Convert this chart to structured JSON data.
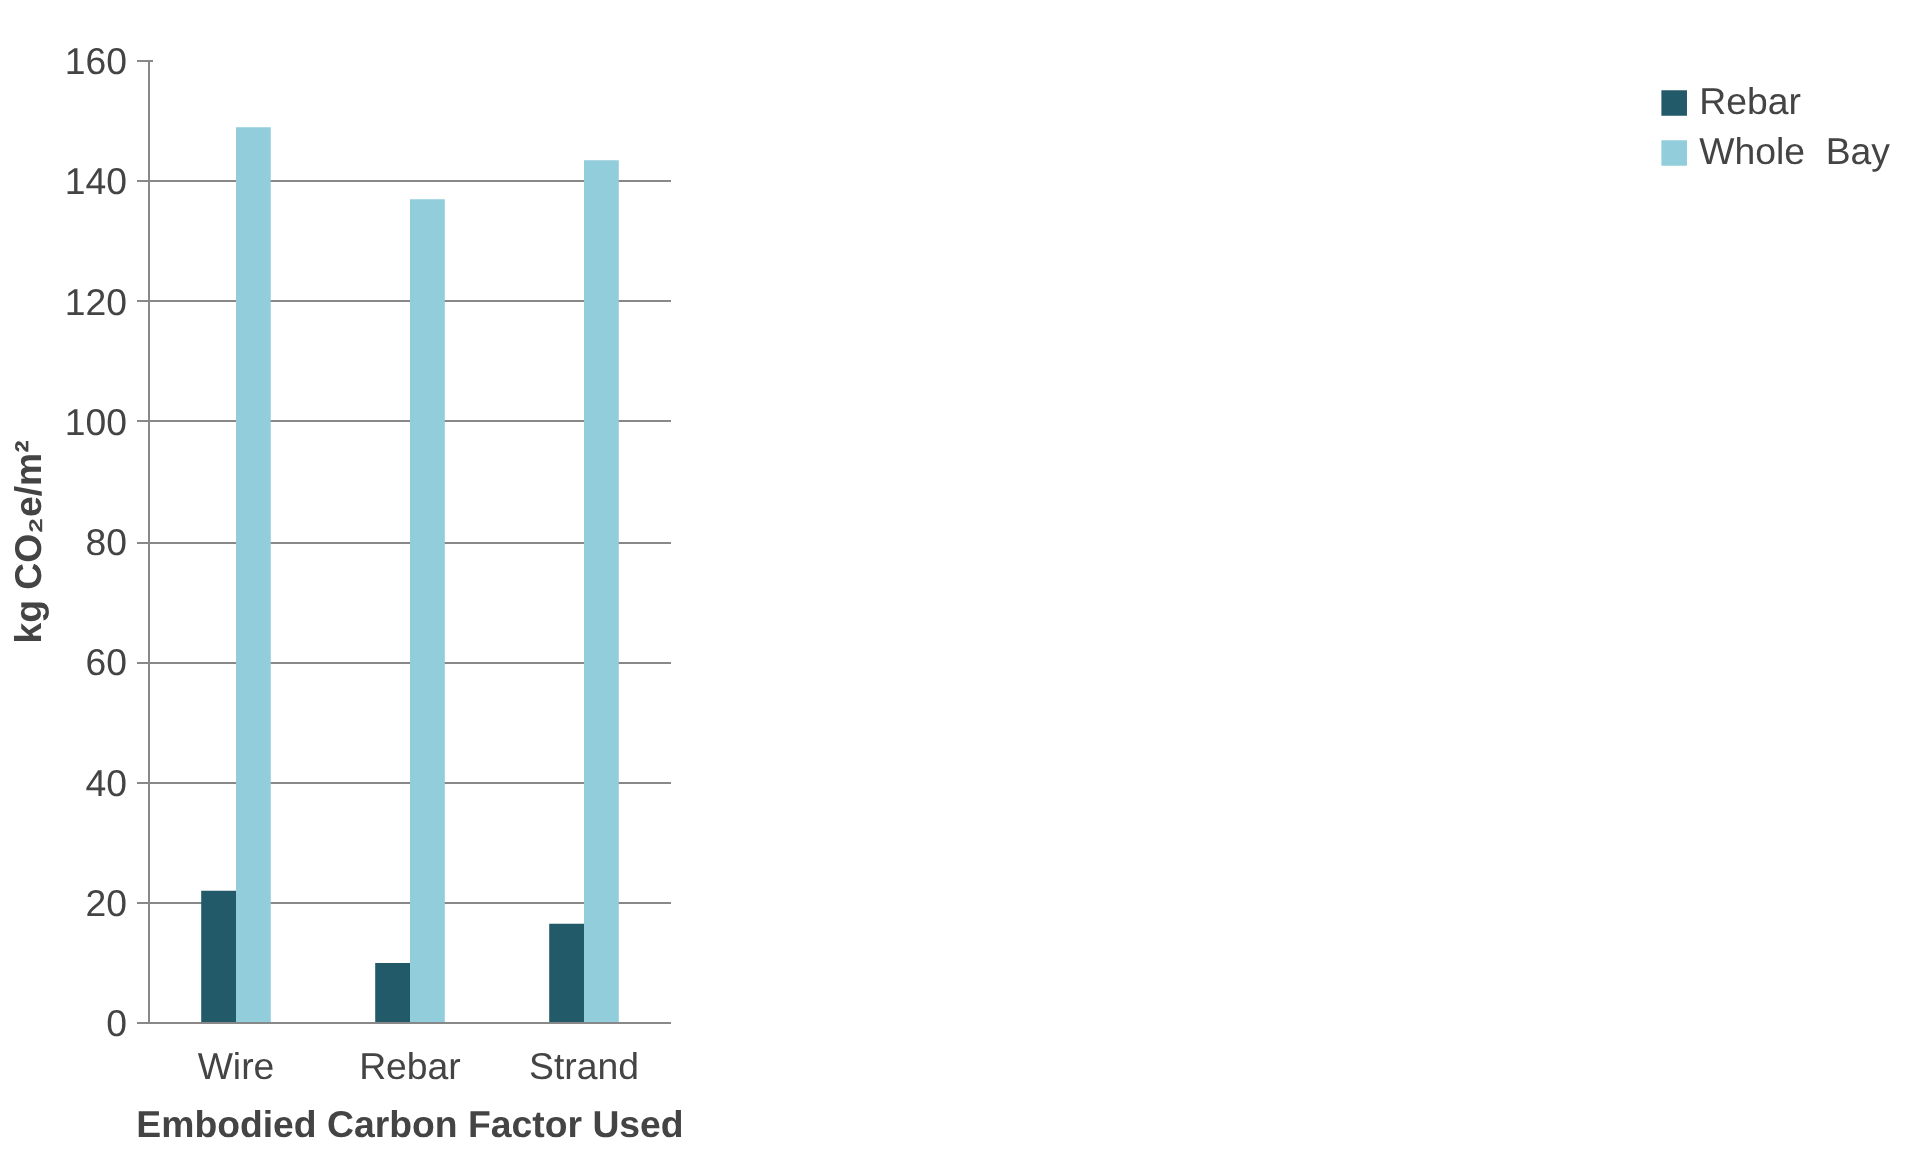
{
  "chart_data": {
    "type": "bar",
    "xlabel": "Embodied Carbon Factor Used",
    "ylabel": "kg CO₂e/m²",
    "categories": [
      "Wire",
      "Rebar",
      "Strand"
    ],
    "series": [
      {
        "name": "Rebar",
        "color": "#235a6a",
        "values": [
          22,
          10,
          16.5
        ]
      },
      {
        "name": "Whole  Bay",
        "color": "#92cddc",
        "values": [
          149,
          137,
          143.5
        ]
      }
    ],
    "ylim": [
      0,
      160
    ],
    "yticks": [
      0,
      20,
      40,
      60,
      80,
      100,
      120,
      140,
      160
    ],
    "grid": "y",
    "legend": "right"
  }
}
